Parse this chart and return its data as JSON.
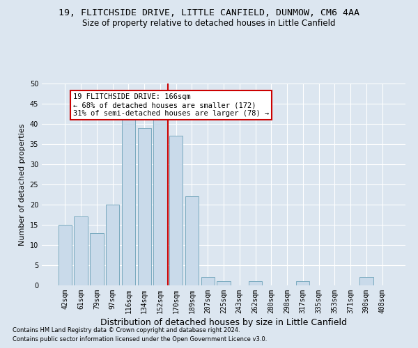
{
  "title1": "19, FLITCHSIDE DRIVE, LITTLE CANFIELD, DUNMOW, CM6 4AA",
  "title2": "Size of property relative to detached houses in Little Canfield",
  "xlabel": "Distribution of detached houses by size in Little Canfield",
  "ylabel": "Number of detached properties",
  "footnote1": "Contains HM Land Registry data © Crown copyright and database right 2024.",
  "footnote2": "Contains public sector information licensed under the Open Government Licence v3.0.",
  "bar_labels": [
    "42sqm",
    "61sqm",
    "79sqm",
    "97sqm",
    "116sqm",
    "134sqm",
    "152sqm",
    "170sqm",
    "189sqm",
    "207sqm",
    "225sqm",
    "243sqm",
    "262sqm",
    "280sqm",
    "298sqm",
    "317sqm",
    "335sqm",
    "353sqm",
    "371sqm",
    "390sqm",
    "408sqm"
  ],
  "bar_values": [
    15,
    17,
    13,
    20,
    41,
    39,
    42,
    37,
    22,
    2,
    1,
    0,
    1,
    0,
    0,
    1,
    0,
    0,
    0,
    2,
    0
  ],
  "bar_color": "#c9daea",
  "bar_edgecolor": "#7aaabf",
  "vline_index": 6,
  "vline_color": "#cc0000",
  "annotation_text": "19 FLITCHSIDE DRIVE: 166sqm\n← 68% of detached houses are smaller (172)\n31% of semi-detached houses are larger (78) →",
  "annotation_box_facecolor": "#ffffff",
  "annotation_box_edgecolor": "#cc0000",
  "ylim": [
    0,
    50
  ],
  "yticks": [
    0,
    5,
    10,
    15,
    20,
    25,
    30,
    35,
    40,
    45,
    50
  ],
  "background_color": "#dce6f0",
  "grid_color": "#ffffff",
  "title1_fontsize": 9.5,
  "title2_fontsize": 8.5,
  "xlabel_fontsize": 9,
  "ylabel_fontsize": 8,
  "tick_fontsize": 7,
  "annotation_fontsize": 7.5,
  "footnote_fontsize": 6
}
